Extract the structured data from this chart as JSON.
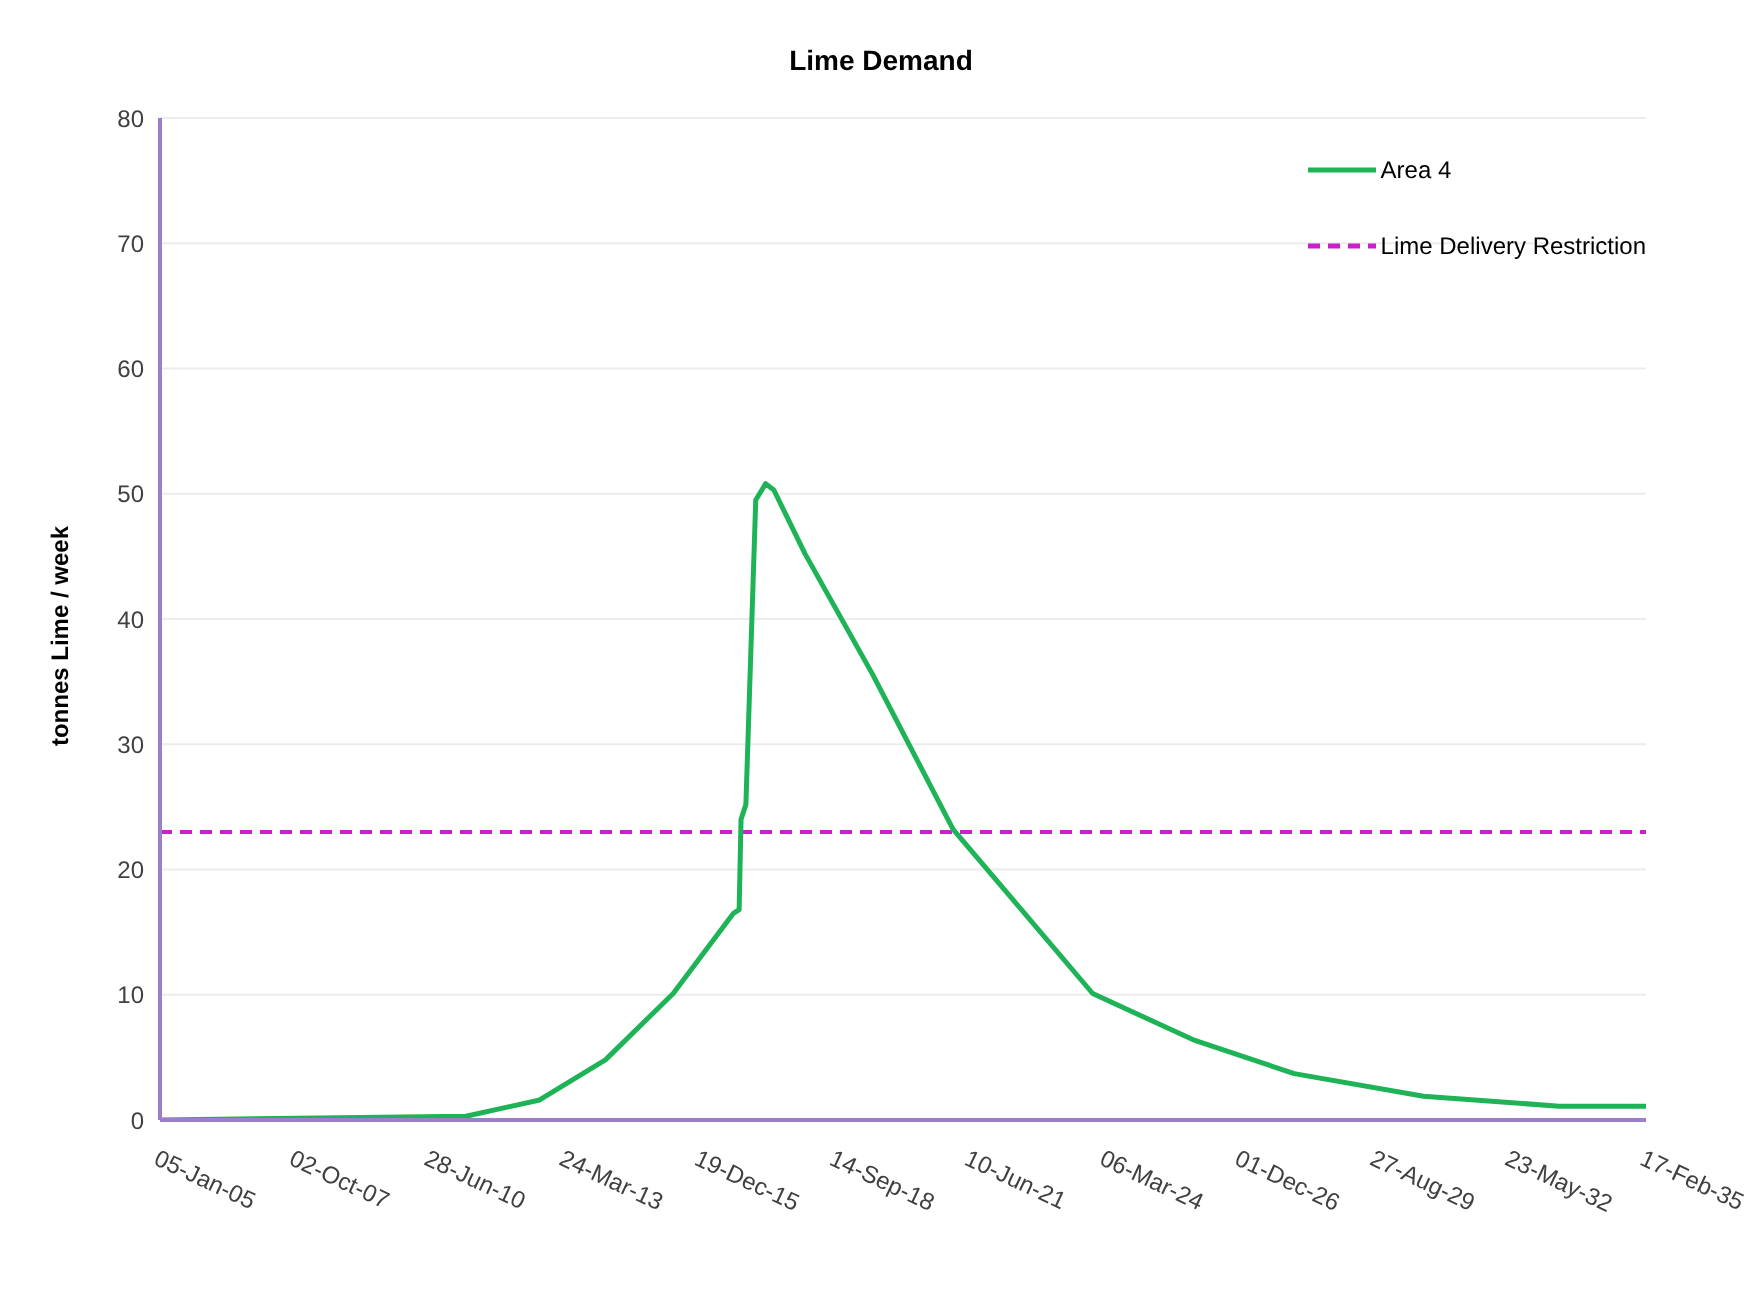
{
  "chart_data": {
    "type": "line",
    "title": "Lime Demand",
    "ylabel": "tonnes Lime / week",
    "x": [
      "2005-01-05",
      "2011-03-20",
      "2012-09-15",
      "2014-01-15",
      "2015-06-01",
      "2016-08-20",
      "2016-10-01",
      "2016-10-15",
      "2016-11-20",
      "2017-02-01",
      "2017-04-15",
      "2017-06-15",
      "2018-02-01",
      "2019-06-15",
      "2021-02-01",
      "2022-07-15",
      "2023-12-01",
      "2025-12-15",
      "2028-01-01",
      "2030-08-15",
      "2033-05-15",
      "2035-02-17"
    ],
    "series": [
      {
        "name": "Area 4",
        "color": "#1eb356",
        "values": [
          0,
          0.3,
          1.6,
          4.8,
          10.1,
          16.5,
          16.8,
          24,
          25.2,
          49.5,
          50.8,
          50.3,
          45.2,
          35.6,
          23.2,
          16.5,
          10.1,
          6.4,
          3.7,
          1.9,
          1.1,
          1.1
        ]
      }
    ],
    "ref_lines": [
      {
        "axis": "y",
        "value": 23,
        "label": "Lime Delivery Restriction",
        "color": "#cc1fcc",
        "line_style": "dashed"
      }
    ],
    "xlim": [
      "2005-01-05",
      "2035-02-17"
    ],
    "xticks": [
      {
        "value": "2005-01-05",
        "label": "05-Jan-05"
      },
      {
        "value": "2007-10-02",
        "label": "02-Oct-07"
      },
      {
        "value": "2010-06-28",
        "label": "28-Jun-10"
      },
      {
        "value": "2013-03-24",
        "label": "24-Mar-13"
      },
      {
        "value": "2015-12-19",
        "label": "19-Dec-15"
      },
      {
        "value": "2018-09-14",
        "label": "14-Sep-18"
      },
      {
        "value": "2021-06-10",
        "label": "10-Jun-21"
      },
      {
        "value": "2024-03-06",
        "label": "06-Mar-24"
      },
      {
        "value": "2026-12-01",
        "label": "01-Dec-26"
      },
      {
        "value": "2029-08-27",
        "label": "27-Aug-29"
      },
      {
        "value": "2032-05-23",
        "label": "23-May-32"
      },
      {
        "value": "2035-02-17",
        "label": "17-Feb-35"
      }
    ],
    "ylim": [
      0,
      80
    ],
    "yticks": [
      0,
      10,
      20,
      30,
      40,
      50,
      60,
      70,
      80
    ],
    "grid": "y",
    "legend": "top right",
    "marker": "none",
    "line_style": "solid"
  }
}
